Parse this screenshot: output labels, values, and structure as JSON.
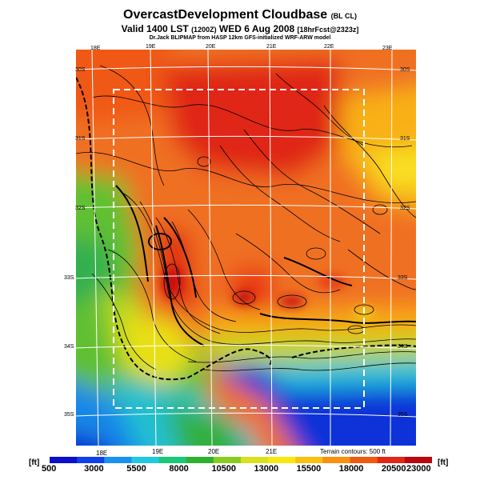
{
  "title": {
    "main": "OvercastDevelopment Cloudbase",
    "suffix": "(BL CL)",
    "valid": "Valid 1400 LST",
    "valid_utc": "(1200Z)",
    "date": "WED 6 Aug 2008",
    "forecast": "[18hrFcst@2323z]",
    "credit": "Dr.Jack BLIPMAP from HASP 12km GFS-initialized WRF-ARW model"
  },
  "map": {
    "longitudes": [
      "18E",
      "19E",
      "20E",
      "21E",
      "22E",
      "23E"
    ],
    "latitudes": [
      "30S",
      "31S",
      "32S",
      "33S",
      "34S",
      "35S"
    ],
    "terrain_note": "Terrain contours: 500 ft"
  },
  "legend": {
    "unit": "[ft]",
    "values": [
      "500",
      "3000",
      "5500",
      "8000",
      "10500",
      "13000",
      "15500",
      "18000",
      "20500",
      "23000"
    ],
    "colors": [
      "#0a10c8",
      "#1040e8",
      "#1a90f0",
      "#20c8e0",
      "#18c878",
      "#30b030",
      "#88cc20",
      "#d8e020",
      "#f8e810",
      "#f8c010",
      "#f89010",
      "#f05a10",
      "#e02818",
      "#b80810"
    ]
  }
}
